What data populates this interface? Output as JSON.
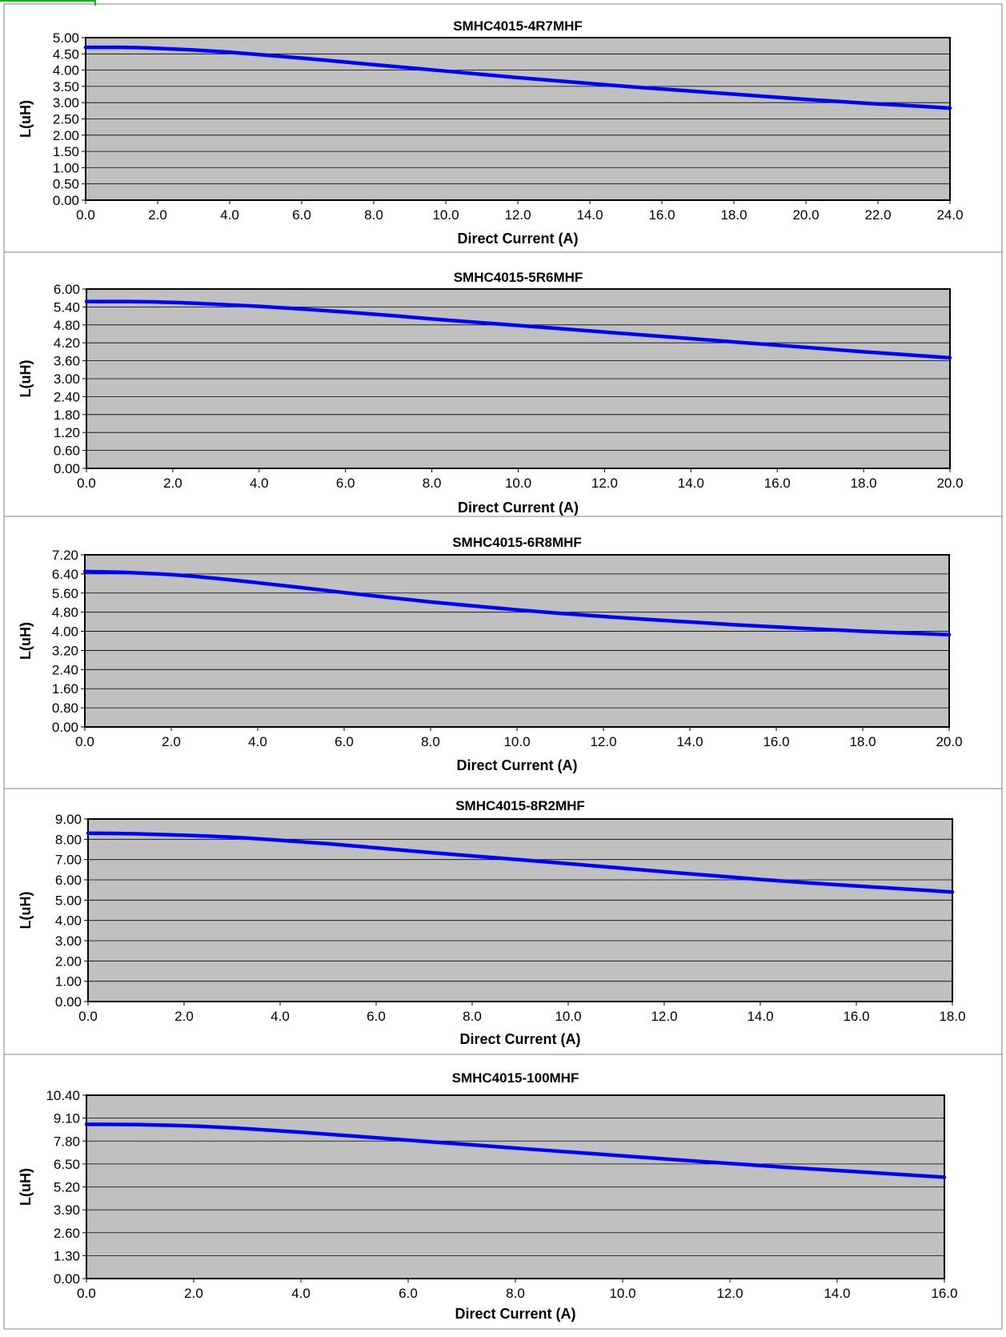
{
  "chart_data": [
    {
      "type": "line",
      "title": "SMHC4015-4R7MHF",
      "xlabel": "Direct  Current (A)",
      "ylabel": "L(uH)",
      "xlim": [
        0,
        24
      ],
      "ylim": [
        0,
        5
      ],
      "xticks": [
        "0.0",
        "2.0",
        "4.0",
        "6.0",
        "8.0",
        "10.0",
        "12.0",
        "14.0",
        "16.0",
        "18.0",
        "20.0",
        "22.0",
        "24.0"
      ],
      "yticks": [
        "0.00",
        "0.50",
        "1.00",
        "1.50",
        "2.00",
        "2.50",
        "3.00",
        "3.50",
        "4.00",
        "4.50",
        "5.00"
      ],
      "grid": true,
      "background": "#c0c0c0",
      "series": [
        {
          "color": "#0000ff",
          "x": [
            0,
            1,
            2,
            3,
            4,
            5,
            6,
            7,
            8,
            9,
            10,
            11,
            12,
            13,
            14,
            15,
            16,
            17,
            18,
            19,
            20,
            21,
            22,
            23,
            24
          ],
          "y": [
            4.7,
            4.7,
            4.67,
            4.62,
            4.55,
            4.46,
            4.37,
            4.27,
            4.17,
            4.07,
            3.97,
            3.87,
            3.77,
            3.68,
            3.59,
            3.5,
            3.42,
            3.34,
            3.26,
            3.18,
            3.1,
            3.03,
            2.96,
            2.9,
            2.83
          ]
        }
      ]
    },
    {
      "type": "line",
      "title": "SMHC4015-5R6MHF",
      "xlabel": "Direct  Current (A)",
      "ylabel": "L(uH)",
      "xlim": [
        0,
        20
      ],
      "ylim": [
        0,
        6
      ],
      "xticks": [
        "0.0",
        "2.0",
        "4.0",
        "6.0",
        "8.0",
        "10.0",
        "12.0",
        "14.0",
        "16.0",
        "18.0",
        "20.0"
      ],
      "yticks": [
        "0.00",
        "0.60",
        "1.20",
        "1.80",
        "2.40",
        "3.00",
        "3.60",
        "4.20",
        "4.80",
        "5.40",
        "6.00"
      ],
      "grid": true,
      "background": "#c0c0c0",
      "series": [
        {
          "color": "#0000ff",
          "x": [
            0,
            1,
            2,
            3,
            4,
            5,
            6,
            7,
            8,
            9,
            10,
            11,
            12,
            13,
            14,
            15,
            16,
            17,
            18,
            19,
            20
          ],
          "y": [
            5.58,
            5.58,
            5.55,
            5.49,
            5.42,
            5.33,
            5.23,
            5.12,
            5.0,
            4.89,
            4.78,
            4.67,
            4.56,
            4.45,
            4.34,
            4.23,
            4.12,
            4.01,
            3.9,
            3.8,
            3.7
          ]
        }
      ]
    },
    {
      "type": "line",
      "title": "SMHC4015-6R8MHF",
      "xlabel": "Direct  Current (A)",
      "ylabel": "L(uH)",
      "xlim": [
        0,
        20
      ],
      "ylim": [
        0,
        7.2
      ],
      "xticks": [
        "0.0",
        "2.0",
        "4.0",
        "6.0",
        "8.0",
        "10.0",
        "12.0",
        "14.0",
        "16.0",
        "18.0",
        "20.0"
      ],
      "yticks": [
        "0.00",
        "0.80",
        "1.60",
        "2.40",
        "3.20",
        "4.00",
        "4.80",
        "5.60",
        "6.40",
        "7.20"
      ],
      "grid": true,
      "background": "#c0c0c0",
      "series": [
        {
          "color": "#0000ff",
          "x": [
            0,
            1,
            2,
            3,
            4,
            5,
            6,
            7,
            8,
            9,
            10,
            11,
            12,
            13,
            14,
            15,
            16,
            17,
            18,
            19,
            20
          ],
          "y": [
            6.5,
            6.46,
            6.37,
            6.22,
            6.03,
            5.83,
            5.62,
            5.42,
            5.23,
            5.06,
            4.9,
            4.75,
            4.62,
            4.5,
            4.39,
            4.28,
            4.18,
            4.09,
            4.0,
            3.93,
            3.86
          ]
        }
      ]
    },
    {
      "type": "line",
      "title": "SMHC4015-8R2MHF",
      "xlabel": "Direct  Current (A)",
      "ylabel": "L(uH)",
      "xlim": [
        0,
        18
      ],
      "ylim": [
        0,
        9
      ],
      "xticks": [
        "0.0",
        "2.0",
        "4.0",
        "6.0",
        "8.0",
        "10.0",
        "12.0",
        "14.0",
        "16.0",
        "18.0"
      ],
      "yticks": [
        "0.00",
        "1.00",
        "2.00",
        "3.00",
        "4.00",
        "5.00",
        "6.00",
        "7.00",
        "8.00",
        "9.00"
      ],
      "grid": true,
      "background": "#c0c0c0",
      "series": [
        {
          "color": "#0000ff",
          "x": [
            0,
            1,
            2,
            3,
            4,
            5,
            6,
            7,
            8,
            9,
            10,
            11,
            12,
            13,
            14,
            15,
            16,
            17,
            18
          ],
          "y": [
            8.3,
            8.27,
            8.2,
            8.1,
            7.95,
            7.78,
            7.58,
            7.37,
            7.18,
            6.99,
            6.8,
            6.6,
            6.4,
            6.21,
            6.02,
            5.85,
            5.7,
            5.55,
            5.4
          ]
        }
      ]
    },
    {
      "type": "line",
      "title": "SMHC4015-100MHF",
      "xlabel": "Direct  Current (A)",
      "ylabel": "L(uH)",
      "xlim": [
        0,
        16
      ],
      "ylim": [
        0,
        10.4
      ],
      "xticks": [
        "0.0",
        "2.0",
        "4.0",
        "6.0",
        "8.0",
        "10.0",
        "12.0",
        "14.0",
        "16.0"
      ],
      "yticks": [
        "0.00",
        "1.30",
        "2.60",
        "3.90",
        "5.20",
        "6.50",
        "7.80",
        "9.10",
        "10.40"
      ],
      "grid": true,
      "background": "#c0c0c0",
      "series": [
        {
          "color": "#0000ff",
          "x": [
            0,
            1,
            2,
            3,
            4,
            5,
            6,
            7,
            8,
            9,
            10,
            11,
            12,
            13,
            14,
            15,
            16
          ],
          "y": [
            8.75,
            8.73,
            8.65,
            8.5,
            8.3,
            8.08,
            7.85,
            7.63,
            7.4,
            7.18,
            6.96,
            6.74,
            6.53,
            6.32,
            6.13,
            5.94,
            5.75
          ]
        }
      ]
    }
  ]
}
